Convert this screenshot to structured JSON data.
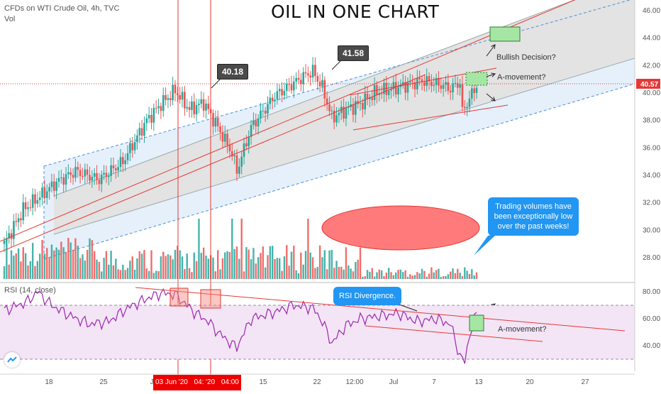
{
  "header": {
    "symbol_line": "CFDs on WTI Crude Oil, 4h, TVC",
    "vol_label": "Vol",
    "title": "OIL IN ONE CHART"
  },
  "annotations": {
    "peak1": "40.18",
    "peak2": "41.58",
    "bullish": "Bullish Decision?",
    "amove": "A-movement?",
    "amove_rsi": "A-movement?",
    "volume_note_line1": "Trading volumes have",
    "volume_note_line2": "been exceptionally low",
    "volume_note_line3": "over the past weeks!",
    "rsi_div": "RSI Divergence."
  },
  "rsi": {
    "label": "RSI (14, close)"
  },
  "price_axis": {
    "current_label": "40.57",
    "ticks": [
      "46.00",
      "44.00",
      "42.00",
      "40.00",
      "38.00",
      "36.00",
      "34.00",
      "32.00",
      "30.00",
      "28.00"
    ]
  },
  "rsi_axis": {
    "ticks": [
      "80.00",
      "60.00",
      "40.00"
    ]
  },
  "time_axis": {
    "ticks": [
      "18",
      "25",
      "J",
      "15",
      "22",
      "12:00",
      "Jul",
      "7",
      "13",
      "20",
      "27"
    ],
    "flag1": "03 Jun '20",
    "flag1_time": "04:00",
    "flag2": "'20",
    "flag2_time": "04:00"
  },
  "colors": {
    "channel_fill": "#e6f0fb",
    "mid_fill": "#e3e3e3",
    "trend": "#e53935",
    "up": "#26a69a",
    "down": "#ef5350",
    "rsi_line": "#9c27b0",
    "rsi_band": "#f3e5f5",
    "ellipse": "#ff7b7b",
    "bubble": "#2196f3",
    "green_box": "#a5e6a5"
  },
  "chart_data": [
    {
      "type": "candlestick",
      "title": "OIL IN ONE CHART",
      "ylim": [
        25,
        47
      ],
      "ymarks": [
        46,
        44,
        42,
        40,
        38,
        36,
        34,
        32,
        30,
        28
      ],
      "price_key": [
        [
          0,
          29.0
        ],
        [
          8,
          31.5
        ],
        [
          16,
          32.6
        ],
        [
          22,
          33.5
        ],
        [
          30,
          34.3
        ],
        [
          40,
          33.7
        ],
        [
          50,
          35.0
        ],
        [
          60,
          38.0
        ],
        [
          66,
          39.2
        ],
        [
          72,
          40.18
        ],
        [
          78,
          38.8
        ],
        [
          84,
          39.3
        ],
        [
          90,
          37.5
        ],
        [
          96,
          35.6
        ],
        [
          98,
          34.3
        ],
        [
          104,
          37.5
        ],
        [
          114,
          39.8
        ],
        [
          126,
          41.2
        ],
        [
          130,
          41.58
        ],
        [
          134,
          40.4
        ],
        [
          138,
          38.2
        ],
        [
          144,
          38.8
        ],
        [
          150,
          39.2
        ],
        [
          156,
          40.0
        ],
        [
          168,
          40.5
        ],
        [
          176,
          40.9
        ],
        [
          184,
          40.6
        ],
        [
          188,
          40.3
        ],
        [
          192,
          40.8
        ],
        [
          193,
          38.6
        ],
        [
          196,
          39.6
        ],
        [
          199,
          40.57
        ]
      ],
      "rsi_key": [
        [
          0,
          66
        ],
        [
          10,
          73
        ],
        [
          14,
          80
        ],
        [
          20,
          70
        ],
        [
          28,
          62
        ],
        [
          36,
          56
        ],
        [
          44,
          58
        ],
        [
          52,
          68
        ],
        [
          60,
          75
        ],
        [
          66,
          79
        ],
        [
          72,
          78
        ],
        [
          80,
          65
        ],
        [
          86,
          58
        ],
        [
          90,
          50
        ],
        [
          96,
          41
        ],
        [
          98,
          39
        ],
        [
          104,
          60
        ],
        [
          114,
          65
        ],
        [
          122,
          70
        ],
        [
          130,
          68
        ],
        [
          134,
          58
        ],
        [
          138,
          42
        ],
        [
          144,
          55
        ],
        [
          150,
          60
        ],
        [
          158,
          62
        ],
        [
          166,
          64
        ],
        [
          174,
          58
        ],
        [
          182,
          60
        ],
        [
          188,
          56
        ],
        [
          192,
          32
        ],
        [
          194,
          28
        ],
        [
          196,
          48
        ],
        [
          199,
          64
        ]
      ],
      "rsi_ylim": [
        24,
        86
      ],
      "rsi_marks": [
        80,
        60,
        40
      ],
      "bars": 200
    }
  ]
}
